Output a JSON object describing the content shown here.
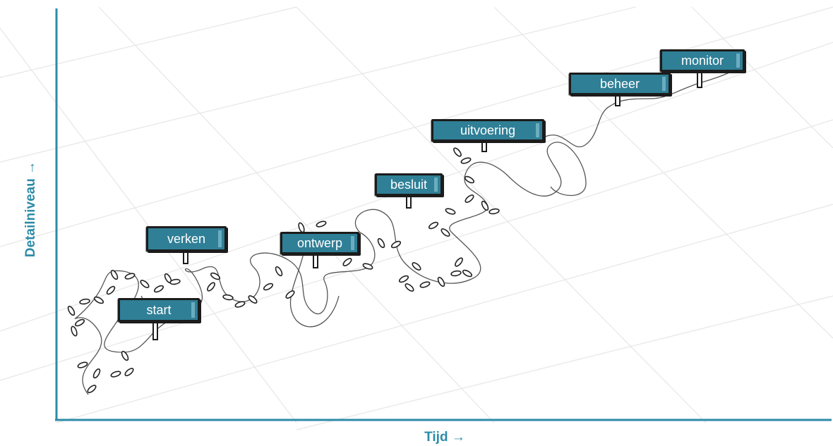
{
  "axes": {
    "y_label": "Detailniveau →",
    "x_label": "Tijd →"
  },
  "colors": {
    "axis": "#2d8ba8",
    "sign_fill": "#2f7f96",
    "sign_outline": "#1c1c1c",
    "path": "#555555",
    "grid": "#eaeaea"
  },
  "signs": [
    {
      "id": "start",
      "label": "start"
    },
    {
      "id": "verken",
      "label": "verken"
    },
    {
      "id": "ontwerp",
      "label": "ontwerp"
    },
    {
      "id": "besluit",
      "label": "besluit"
    },
    {
      "id": "uitvoering",
      "label": "uitvoering"
    },
    {
      "id": "beheer",
      "label": "beheer"
    },
    {
      "id": "monitor",
      "label": "monitor"
    }
  ]
}
